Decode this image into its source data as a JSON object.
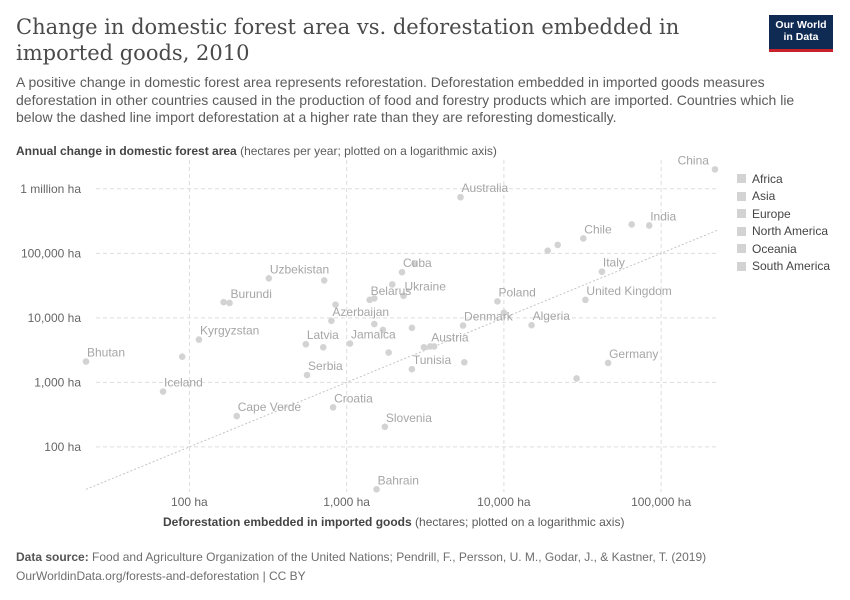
{
  "header": {
    "title": "Change in domestic forest area vs. deforestation embedded in imported goods, 2010",
    "subtitle": "A positive change in domestic forest area represents reforestation. Deforestation embedded in imported goods measures deforestation in other countries caused in the production of food and forestry products which are imported. Countries which lie below the dashed line import deforestation at a higher rate than they are reforesting domestically.",
    "logo_line1": "Our World",
    "logo_line2": "in Data"
  },
  "axes": {
    "y_title_bold": "Annual change in domestic forest area",
    "y_title_rest": " (hectares per year; plotted on a logarithmic axis)",
    "x_title_bold": "Deforestation embedded in imported goods",
    "x_title_rest": " (hectares; plotted on a logarithmic axis)"
  },
  "footer": {
    "source_label": "Data source:",
    "source_text": " Food and Agriculture Organization of the United Nations; Pendrill, F., Persson, U. M., Godar, J., & Kastner, T. (2019)",
    "url_line": "OurWorldinData.org/forests-and-deforestation | CC BY"
  },
  "legend": {
    "items": [
      "Africa",
      "Asia",
      "Europe",
      "North America",
      "Oceania",
      "South America"
    ]
  },
  "colors": {
    "point": "#d3d3d3",
    "grid": "#dddddd",
    "label": "#a6a6a6",
    "logo_bg": "#0f2a53",
    "logo_accent": "#c8232c"
  },
  "chart_data": {
    "type": "scatter",
    "x_scale": "log",
    "y_scale": "log",
    "xlim": [
      22,
      230000
    ],
    "ylim": [
      20,
      2100000
    ],
    "x_ticks": [
      {
        "value": 100,
        "label": "100 ha"
      },
      {
        "value": 1000,
        "label": "1,000 ha"
      },
      {
        "value": 10000,
        "label": "10,000 ha"
      },
      {
        "value": 100000,
        "label": "100,000 ha"
      }
    ],
    "y_ticks": [
      {
        "value": 100,
        "label": "100 ha"
      },
      {
        "value": 1000,
        "label": "1,000 ha"
      },
      {
        "value": 10000,
        "label": "10,000 ha"
      },
      {
        "value": 100000,
        "label": "100,000 ha"
      },
      {
        "value": 1000000,
        "label": "1 million ha"
      }
    ],
    "reference_line": "y = x",
    "points": [
      {
        "name": "China",
        "x": 220000,
        "y": 2000000,
        "label": "China"
      },
      {
        "name": "Australia",
        "x": 5300,
        "y": 740000,
        "label": "Australia"
      },
      {
        "name": "India",
        "x": 84000,
        "y": 270000,
        "label": "India"
      },
      {
        "name": "Chile",
        "x": 32000,
        "y": 170000,
        "label": "Chile"
      },
      {
        "name": "Italy",
        "x": 42000,
        "y": 52000,
        "label": "Italy"
      },
      {
        "name": "United Kingdom",
        "x": 33000,
        "y": 19000,
        "label": "United Kingdom"
      },
      {
        "name": "Poland",
        "x": 9100,
        "y": 18000,
        "label": "Poland"
      },
      {
        "name": "Algeria",
        "x": 15000,
        "y": 7700,
        "label": "Algeria"
      },
      {
        "name": "Germany",
        "x": 46000,
        "y": 2000,
        "label": "Germany"
      },
      {
        "name": "Cuba",
        "x": 2250,
        "y": 51000,
        "label": "Cuba"
      },
      {
        "name": "Ukraine",
        "x": 2300,
        "y": 22000,
        "label": "Ukraine"
      },
      {
        "name": "Belarus",
        "x": 1400,
        "y": 19000,
        "label": "Belarus"
      },
      {
        "name": "Uzbekistan",
        "x": 320,
        "y": 41000,
        "label": "Uzbekistan"
      },
      {
        "name": "Burundi",
        "x": 180,
        "y": 17000,
        "label": "Burundi"
      },
      {
        "name": "Azerbaijan",
        "x": 800,
        "y": 9000,
        "label": "Azerbaijan"
      },
      {
        "name": "Denmark",
        "x": 5500,
        "y": 7600,
        "label": "Denmark"
      },
      {
        "name": "Kyrgyzstan",
        "x": 115,
        "y": 4600,
        "label": "Kyrgyzstan"
      },
      {
        "name": "Latvia",
        "x": 550,
        "y": 3900,
        "label": "Latvia"
      },
      {
        "name": "Jamaica",
        "x": 1050,
        "y": 4000,
        "label": "Jamaica"
      },
      {
        "name": "Austria",
        "x": 3400,
        "y": 3600,
        "label": "Austria"
      },
      {
        "name": "Bhutan",
        "x": 22,
        "y": 2100,
        "label": "Bhutan"
      },
      {
        "name": "Tunisia",
        "x": 2600,
        "y": 1600,
        "label": "Tunisia"
      },
      {
        "name": "Serbia",
        "x": 560,
        "y": 1300,
        "label": "Serbia"
      },
      {
        "name": "Iceland",
        "x": 68,
        "y": 720,
        "label": "Iceland"
      },
      {
        "name": "Croatia",
        "x": 820,
        "y": 410,
        "label": "Croatia"
      },
      {
        "name": "Cape Verde",
        "x": 200,
        "y": 300,
        "label": "Cape Verde"
      },
      {
        "name": "Slovenia",
        "x": 1750,
        "y": 205,
        "label": "Slovenia"
      },
      {
        "name": "Bahrain",
        "x": 1550,
        "y": 22,
        "label": "Bahrain"
      },
      {
        "name": "",
        "x": 2700,
        "y": 70000
      },
      {
        "name": "",
        "x": 22000,
        "y": 135000
      },
      {
        "name": "",
        "x": 19000,
        "y": 110000
      },
      {
        "name": "",
        "x": 65000,
        "y": 280000
      },
      {
        "name": "",
        "x": 720,
        "y": 38000
      },
      {
        "name": "",
        "x": 1950,
        "y": 33000
      },
      {
        "name": "",
        "x": 1500,
        "y": 20000
      },
      {
        "name": "",
        "x": 850,
        "y": 16000
      },
      {
        "name": "",
        "x": 165,
        "y": 17500
      },
      {
        "name": "",
        "x": 10000,
        "y": 12000
      },
      {
        "name": "",
        "x": 1500,
        "y": 8000
      },
      {
        "name": "",
        "x": 1700,
        "y": 6500
      },
      {
        "name": "",
        "x": 2600,
        "y": 7000
      },
      {
        "name": "",
        "x": 710,
        "y": 3500
      },
      {
        "name": "",
        "x": 3100,
        "y": 3500
      },
      {
        "name": "",
        "x": 3600,
        "y": 3600
      },
      {
        "name": "",
        "x": 1850,
        "y": 2900
      },
      {
        "name": "",
        "x": 5600,
        "y": 2050
      },
      {
        "name": "",
        "x": 90,
        "y": 2500
      },
      {
        "name": "",
        "x": 29000,
        "y": 1150
      }
    ]
  }
}
